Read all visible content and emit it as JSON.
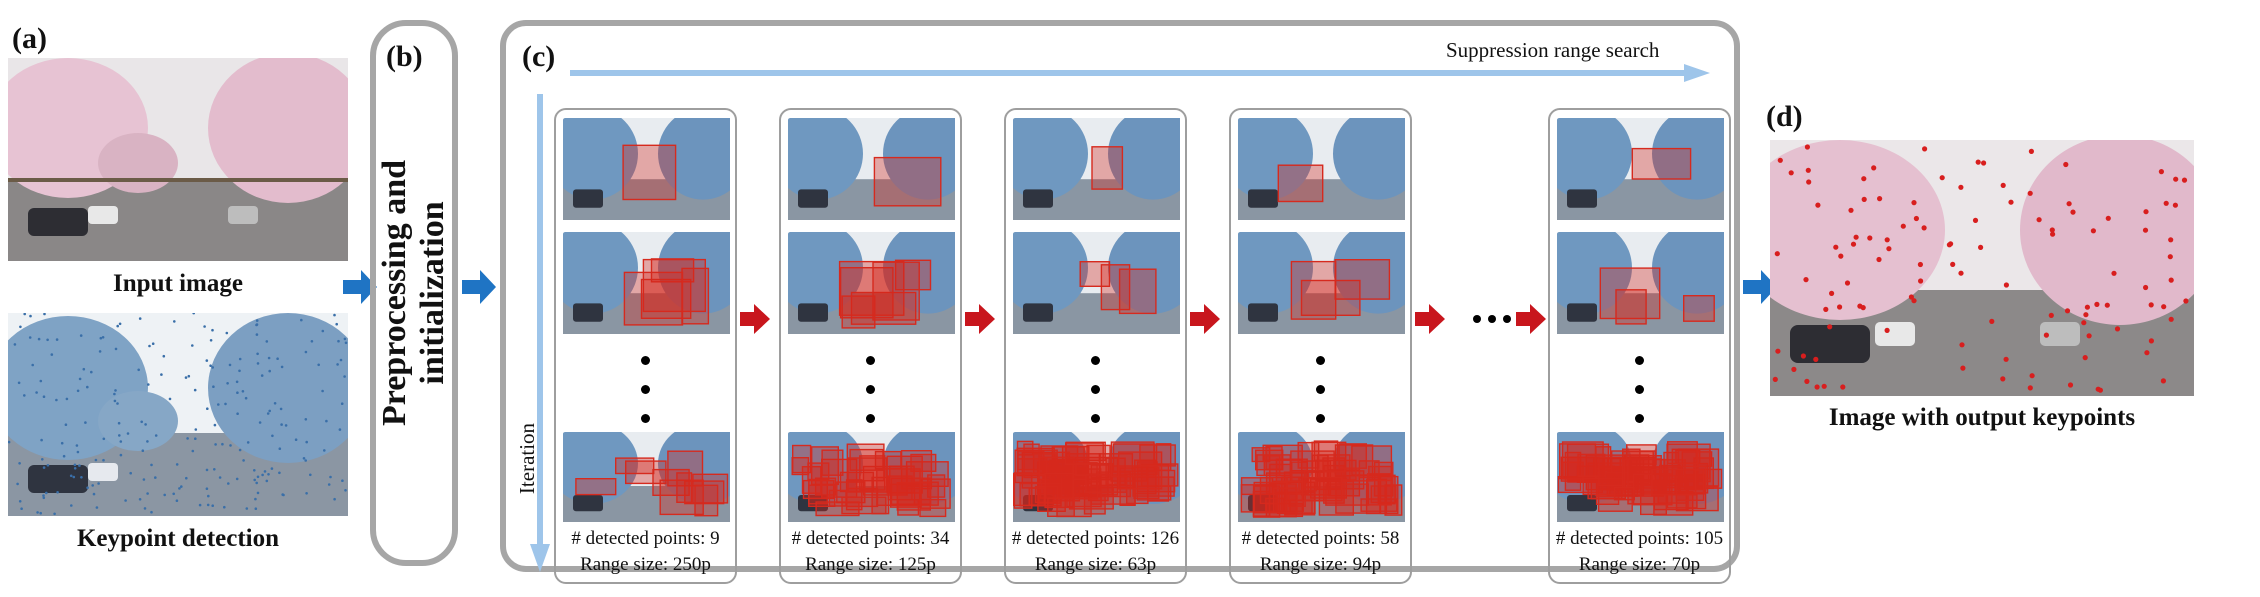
{
  "panels": {
    "a": {
      "label": "(a)",
      "input_caption": "Input image",
      "keypoint_caption": "Keypoint detection"
    },
    "b": {
      "label": "(b)",
      "title_line1": "Preprocessing and",
      "title_line2": "initialization"
    },
    "c": {
      "label": "(c)",
      "horizontal_axis": "Suppression range search",
      "vertical_axis": "Iteration",
      "columns": [
        {
          "detected": "# detected points: 9",
          "range": "Range size: 250p"
        },
        {
          "detected": "# detected points: 34",
          "range": "Range size: 125p"
        },
        {
          "detected": "# detected points: 126",
          "range": "Range size: 63p"
        },
        {
          "detected": "# detected points: 58",
          "range": "Range size: 94p"
        },
        {
          "detected": "# detected points: 105",
          "range": "Range size: 70p"
        }
      ]
    },
    "d": {
      "label": "(d)",
      "output_caption": "Image with output keypoints"
    }
  },
  "colors": {
    "arrow_blue": "#1f74c4",
    "light_blue": "#9ec5ea",
    "red": "#c8161d",
    "panel_border": "#a6a6a6"
  }
}
